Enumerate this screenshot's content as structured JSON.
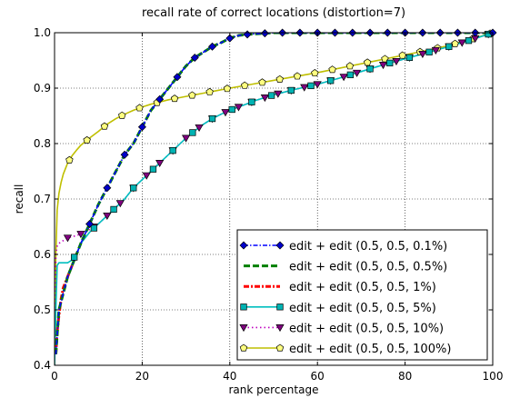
{
  "chart_data": {
    "type": "line",
    "title": "recall rate of correct locations (distortion=7)",
    "xlabel": "rank percentage",
    "ylabel": "recall",
    "xlim": [
      0,
      100
    ],
    "ylim": [
      0.4,
      1.0
    ],
    "xticks": [
      "0",
      "20",
      "40",
      "60",
      "80",
      "100"
    ],
    "yticks": [
      "0.4",
      "0.5",
      "0.6",
      "0.7",
      "0.8",
      "0.9",
      "1.0"
    ],
    "grid": true,
    "legend_position": "lower-right",
    "series": [
      {
        "name": "edit + edit (0.5, 0.5, 0.1%)",
        "color": "#0000ff",
        "marker_color": "#0000cc",
        "line_style": "dash-dot",
        "marker": "diamond",
        "x": [
          0.3,
          1,
          2,
          3,
          4,
          6,
          8,
          10,
          12,
          14,
          16,
          18,
          20,
          22,
          24,
          26,
          28,
          30,
          32,
          34,
          36,
          38,
          40,
          42,
          44,
          46,
          48,
          50,
          55,
          60,
          65,
          70,
          75,
          80,
          85,
          90,
          95,
          100
        ],
        "y": [
          0.42,
          0.5,
          0.53,
          0.56,
          0.58,
          0.62,
          0.655,
          0.69,
          0.72,
          0.75,
          0.78,
          0.8,
          0.83,
          0.86,
          0.88,
          0.9,
          0.92,
          0.94,
          0.955,
          0.965,
          0.975,
          0.982,
          0.99,
          0.995,
          0.997,
          0.998,
          0.999,
          1.0,
          1.0,
          1.0,
          1.0,
          1.0,
          1.0,
          1.0,
          1.0,
          1.0,
          1.0,
          1.0
        ],
        "marker_x": [
          8,
          12,
          16,
          20,
          24,
          28,
          32,
          36,
          40,
          44,
          48,
          52,
          56,
          60,
          64,
          68,
          72,
          76,
          80,
          84,
          88,
          92,
          96,
          100
        ]
      },
      {
        "name": "edit + edit (0.5, 0.5, 0.5%)",
        "color": "#008000",
        "line_style": "dashed",
        "marker": "none",
        "x": [
          0.3,
          1,
          2,
          3,
          4,
          6,
          8,
          10,
          12,
          14,
          16,
          18,
          20,
          22,
          24,
          26,
          28,
          30,
          32,
          34,
          36,
          38,
          40,
          42,
          44,
          46,
          48,
          50,
          55,
          60,
          65,
          70,
          75,
          80,
          85,
          90,
          95,
          100
        ],
        "y": [
          0.42,
          0.5,
          0.53,
          0.56,
          0.58,
          0.62,
          0.655,
          0.69,
          0.72,
          0.75,
          0.78,
          0.8,
          0.83,
          0.86,
          0.88,
          0.9,
          0.92,
          0.94,
          0.955,
          0.965,
          0.975,
          0.982,
          0.99,
          0.995,
          0.997,
          0.998,
          0.999,
          1.0,
          1.0,
          1.0,
          1.0,
          1.0,
          1.0,
          1.0,
          1.0,
          1.0,
          1.0,
          1.0
        ]
      },
      {
        "name": "edit + edit (0.5, 0.5, 1%)",
        "color": "#ff0000",
        "line_style": "dash-dot-dense",
        "marker": "none",
        "x": [
          0.3,
          0.6,
          1,
          1.5,
          2,
          3,
          4
        ],
        "y": [
          0.42,
          0.46,
          0.49,
          0.52,
          0.54,
          0.56,
          0.58
        ]
      },
      {
        "name": "edit + edit (0.5, 0.5, 5%)",
        "color": "#00bfbf",
        "marker_color": "#00b3b3",
        "line_style": "solid",
        "marker": "square",
        "x": [
          0,
          0.3,
          0.6,
          1,
          2,
          3,
          4,
          5,
          6,
          8,
          10,
          12,
          14,
          16,
          18,
          20,
          22,
          24,
          26,
          28,
          30,
          32,
          34,
          36,
          38,
          40,
          42,
          44,
          46,
          48,
          50,
          55,
          60,
          65,
          70,
          75,
          80,
          85,
          90,
          95,
          100
        ],
        "y": [
          0.4,
          0.5,
          0.58,
          0.585,
          0.585,
          0.585,
          0.59,
          0.6,
          0.62,
          0.64,
          0.655,
          0.67,
          0.685,
          0.7,
          0.72,
          0.735,
          0.75,
          0.765,
          0.78,
          0.795,
          0.81,
          0.823,
          0.835,
          0.845,
          0.853,
          0.86,
          0.866,
          0.872,
          0.878,
          0.883,
          0.888,
          0.898,
          0.907,
          0.918,
          0.93,
          0.942,
          0.953,
          0.964,
          0.975,
          0.987,
          1.0
        ],
        "marker_x": [
          4.5,
          9,
          13.5,
          18,
          22.5,
          27,
          31.5,
          36,
          40.5,
          45,
          49.5,
          54,
          58.5,
          63,
          67.5,
          72,
          76.5,
          81,
          85.5,
          90,
          94.5,
          99
        ]
      },
      {
        "name": "edit + edit (0.5, 0.5, 10%)",
        "color": "#bf00bf",
        "marker_color": "#800080",
        "line_style": "dotted",
        "marker": "triangle-down",
        "x": [
          0,
          0.3,
          0.6,
          1,
          2,
          3,
          4,
          5,
          6,
          8,
          10,
          12,
          14,
          16,
          18,
          20,
          22,
          24,
          26,
          28,
          30,
          32,
          34,
          36,
          38,
          40,
          42,
          44,
          46,
          48,
          50,
          55,
          60,
          65,
          70,
          75,
          80,
          85,
          90,
          95,
          100
        ],
        "y": [
          0.4,
          0.6,
          0.615,
          0.62,
          0.625,
          0.63,
          0.632,
          0.634,
          0.637,
          0.645,
          0.655,
          0.67,
          0.685,
          0.7,
          0.72,
          0.735,
          0.75,
          0.765,
          0.78,
          0.795,
          0.81,
          0.823,
          0.835,
          0.845,
          0.853,
          0.86,
          0.866,
          0.872,
          0.878,
          0.883,
          0.888,
          0.898,
          0.907,
          0.918,
          0.93,
          0.942,
          0.953,
          0.964,
          0.975,
          0.987,
          1.0
        ],
        "marker_x": [
          3,
          6,
          9,
          12,
          15,
          18,
          21,
          24,
          27,
          30,
          33,
          36,
          39,
          42,
          45,
          48,
          51,
          54,
          57,
          60,
          63,
          66,
          69,
          72,
          75,
          78,
          81,
          84,
          87,
          90,
          93,
          96,
          99
        ]
      },
      {
        "name": "edit + edit (0.5, 0.5, 100%)",
        "color": "#bfbf00",
        "marker_color": "#ffff80",
        "line_style": "solid",
        "marker": "pentagon",
        "x": [
          0,
          0.3,
          0.6,
          1,
          1.5,
          2,
          3,
          4,
          5,
          6,
          8,
          10,
          12,
          14,
          16,
          18,
          20,
          22,
          24,
          26,
          28,
          30,
          32,
          34,
          36,
          38,
          40,
          45,
          50,
          55,
          60,
          65,
          70,
          75,
          80,
          85,
          90,
          95,
          100
        ],
        "y": [
          0.4,
          0.6,
          0.68,
          0.71,
          0.73,
          0.745,
          0.765,
          0.778,
          0.788,
          0.797,
          0.81,
          0.822,
          0.835,
          0.845,
          0.853,
          0.86,
          0.866,
          0.871,
          0.875,
          0.879,
          0.882,
          0.885,
          0.888,
          0.891,
          0.894,
          0.897,
          0.9,
          0.907,
          0.914,
          0.921,
          0.928,
          0.936,
          0.944,
          0.952,
          0.96,
          0.968,
          0.977,
          0.988,
          1.0
        ],
        "marker_x": [
          3.4,
          7.4,
          11.4,
          15.4,
          19.4,
          23.4,
          27.4,
          31.4,
          35.4,
          39.4,
          43.4,
          47.4,
          51.4,
          55.4,
          59.4,
          63.4,
          67.4,
          71.4,
          75.4,
          79.4,
          83.4,
          87.4,
          91.4,
          95.4,
          99.4
        ]
      }
    ]
  }
}
